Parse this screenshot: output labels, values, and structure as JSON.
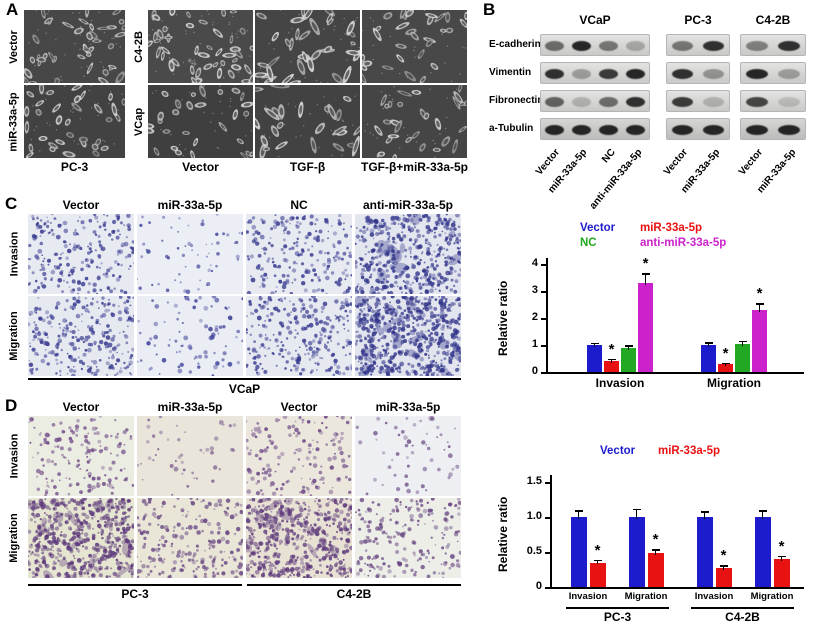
{
  "figure": {
    "panel_a": {
      "label": "A",
      "pc3": {
        "row_labels": [
          "Vector",
          "miR-33a-5p"
        ],
        "bottom_label": "PC-3"
      },
      "tgfb": {
        "row_labels": [
          "C4-2B",
          "VCap"
        ],
        "col_labels": [
          "Vector",
          "TGF-β",
          "TGF-β+miR-33a-5p"
        ]
      }
    },
    "panel_b": {
      "label": "B",
      "groups": [
        {
          "name": "VCaP",
          "lanes": [
            "Vector",
            "miR-33a-5p",
            "NC",
            "anti-miR-33a-5p"
          ]
        },
        {
          "name": "PC-3",
          "lanes": [
            "Vector",
            "miR-33a-5p"
          ]
        },
        {
          "name": "C4-2B",
          "lanes": [
            "Vector",
            "miR-33a-5p"
          ]
        }
      ],
      "proteins": [
        "E-cadherin",
        "Vimentin",
        "Fibronectin",
        "a-Tubulin"
      ],
      "band_intensities": [
        [
          [
            0.55,
            0.9,
            0.5,
            0.25
          ],
          [
            0.5,
            0.85
          ],
          [
            0.45,
            0.85
          ]
        ],
        [
          [
            0.85,
            0.3,
            0.8,
            0.9
          ],
          [
            0.85,
            0.35
          ],
          [
            0.9,
            0.3
          ]
        ],
        [
          [
            0.6,
            0.2,
            0.55,
            0.85
          ],
          [
            0.8,
            0.2
          ],
          [
            0.75,
            0.15
          ]
        ],
        [
          [
            0.9,
            0.9,
            0.9,
            0.9
          ],
          [
            0.9,
            0.9
          ],
          [
            0.9,
            0.9
          ]
        ]
      ]
    },
    "panel_c": {
      "label": "C",
      "col_labels": [
        "Vector",
        "miR-33a-5p",
        "NC",
        "anti-miR-33a-5p"
      ],
      "row_labels": [
        "Invasion",
        "Migration"
      ],
      "cell_line": "VCaP"
    },
    "panel_d": {
      "label": "D",
      "col_labels": [
        "Vector",
        "miR-33a-5p",
        "Vector",
        "miR-33a-5p"
      ],
      "row_labels": [
        "Invasion",
        "Migration"
      ],
      "cell_lines": [
        "PC-3",
        "C4-2B"
      ]
    }
  },
  "chart_data": [
    {
      "id": "chartC",
      "type": "bar",
      "title": "",
      "ylabel": "Relative ratio",
      "ylim": [
        0,
        4
      ],
      "ytick_values": [
        0,
        1,
        2,
        3,
        4
      ],
      "ytick_labels": [
        "0",
        "1",
        "2",
        "3",
        "4"
      ],
      "grid": false,
      "legend_position": "top",
      "categories": [
        "Invasion",
        "Migration"
      ],
      "series": [
        {
          "name": "Vector",
          "color": "#1c1ccc",
          "values": [
            1.0,
            1.0
          ],
          "errors": [
            0.08,
            0.1
          ],
          "sig": [
            false,
            false
          ]
        },
        {
          "name": "miR-33a-5p",
          "color": "#e81212",
          "values": [
            0.42,
            0.3
          ],
          "errors": [
            0.07,
            0.05
          ],
          "sig": [
            true,
            true
          ]
        },
        {
          "name": "NC",
          "color": "#22a822",
          "values": [
            0.88,
            1.05
          ],
          "errors": [
            0.12,
            0.1
          ],
          "sig": [
            false,
            false
          ]
        },
        {
          "name": "anti-miR-33a-5p",
          "color": "#cc22cc",
          "values": [
            3.3,
            2.3
          ],
          "errors": [
            0.35,
            0.25
          ],
          "sig": [
            true,
            true
          ]
        }
      ]
    },
    {
      "id": "chartD",
      "type": "bar",
      "title": "",
      "ylabel": "Relative ratio",
      "ylim": [
        0,
        1.5
      ],
      "ytick_values": [
        0,
        0.5,
        1.0,
        1.5
      ],
      "ytick_labels": [
        "0",
        "0.5",
        "1.0",
        "1.5"
      ],
      "grid": false,
      "legend_position": "top",
      "categories": [
        "Invasion",
        "Migration",
        "Invasion",
        "Migration"
      ],
      "group_labels": [
        "PC-3",
        "C4-2B"
      ],
      "series": [
        {
          "name": "Vector",
          "color": "#1c1ccc",
          "values": [
            1.0,
            1.0,
            1.0,
            1.0
          ],
          "errors": [
            0.1,
            0.12,
            0.08,
            0.1
          ],
          "sig": [
            false,
            false,
            false,
            false
          ]
        },
        {
          "name": "miR-33a-5p",
          "color": "#e81212",
          "values": [
            0.35,
            0.48,
            0.27,
            0.4
          ],
          "errors": [
            0.04,
            0.06,
            0.04,
            0.05
          ],
          "sig": [
            true,
            true,
            true,
            true
          ]
        }
      ]
    }
  ]
}
